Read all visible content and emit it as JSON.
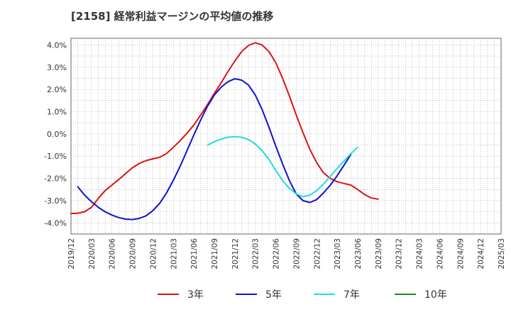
{
  "chart_data": {
    "type": "line",
    "title": "[2158]  経常利益マージンの平均値の推移",
    "xlabel": "",
    "ylabel": "",
    "y_unit": "%",
    "ylim": [
      -4.5,
      4.3
    ],
    "yticks": [
      -4.0,
      -3.0,
      -2.0,
      -1.0,
      0.0,
      1.0,
      2.0,
      3.0,
      4.0
    ],
    "ytick_labels": [
      "-4.0%",
      "-3.0%",
      "-2.0%",
      "-1.0%",
      "0.0%",
      "1.0%",
      "2.0%",
      "3.0%",
      "4.0%"
    ],
    "x_categories": [
      "2019/12",
      "2020/03",
      "2020/06",
      "2020/09",
      "2020/12",
      "2021/03",
      "2021/06",
      "2021/09",
      "2021/12",
      "2022/03",
      "2022/06",
      "2022/09",
      "2022/12",
      "2023/03",
      "2023/06",
      "2023/09",
      "2023/12",
      "2024/03",
      "2024/06",
      "2024/09",
      "2024/12",
      "2025/03"
    ],
    "grid": true,
    "grid_style": "dotted",
    "legend_position": "bottom",
    "series": [
      {
        "name": "3年",
        "color": "#dd1111",
        "start_index": 0,
        "values": [
          -3.58,
          -3.57,
          -3.5,
          -3.3,
          -2.9,
          -2.55,
          -2.3,
          -2.05,
          -1.78,
          -1.52,
          -1.33,
          -1.2,
          -1.12,
          -1.05,
          -0.88,
          -0.6,
          -0.3,
          0.03,
          0.4,
          0.85,
          1.32,
          1.82,
          2.3,
          2.8,
          3.28,
          3.7,
          3.98,
          4.1,
          4.0,
          3.7,
          3.2,
          2.5,
          1.7,
          0.85,
          0.05,
          -0.7,
          -1.3,
          -1.75,
          -2.0,
          -2.15,
          -2.23,
          -2.3,
          -2.5,
          -2.72,
          -2.88,
          -2.93
        ]
      },
      {
        "name": "5年",
        "color": "#1111cc",
        "start_index": 1,
        "values": [
          -2.38,
          -2.75,
          -3.05,
          -3.3,
          -3.5,
          -3.65,
          -3.76,
          -3.83,
          -3.85,
          -3.8,
          -3.68,
          -3.45,
          -3.12,
          -2.65,
          -2.08,
          -1.45,
          -0.75,
          -0.05,
          0.63,
          1.25,
          1.75,
          2.1,
          2.35,
          2.48,
          2.42,
          2.2,
          1.75,
          1.1,
          0.3,
          -0.55,
          -1.35,
          -2.1,
          -2.7,
          -3.0,
          -3.08,
          -2.95,
          -2.65,
          -2.3,
          -1.88,
          -1.4,
          -0.92
        ]
      },
      {
        "name": "7年",
        "color": "#22dddd",
        "start_index": 20,
        "values": [
          -0.5,
          -0.35,
          -0.23,
          -0.15,
          -0.12,
          -0.15,
          -0.25,
          -0.45,
          -0.75,
          -1.15,
          -1.65,
          -2.1,
          -2.45,
          -2.7,
          -2.82,
          -2.75,
          -2.55,
          -2.25,
          -1.9,
          -1.55,
          -1.22,
          -0.88,
          -0.6
        ]
      },
      {
        "name": "10年",
        "color": "#228822",
        "start_index": 0,
        "values": []
      }
    ]
  }
}
